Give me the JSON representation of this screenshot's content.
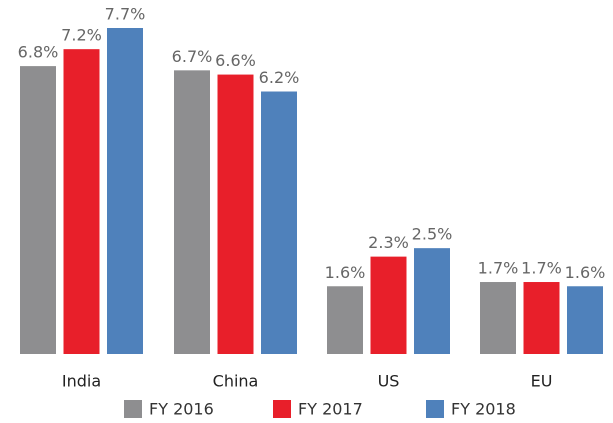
{
  "chart_data": {
    "type": "bar",
    "categories": [
      "India",
      "China",
      "US",
      "EU"
    ],
    "series": [
      {
        "name": "FY 2016",
        "color": "#8e8e90",
        "values": [
          6.8,
          6.7,
          1.6,
          1.7
        ],
        "value_labels": [
          "6.8%",
          "6.7%",
          "1.6%",
          "1.7%"
        ]
      },
      {
        "name": "FY 2017",
        "color": "#e81f2a",
        "values": [
          7.2,
          6.6,
          2.3,
          1.7
        ],
        "value_labels": [
          "7.2%",
          "6.6%",
          "2.3%",
          "1.7%"
        ]
      },
      {
        "name": "FY 2018",
        "color": "#4f81bb",
        "values": [
          7.7,
          6.2,
          2.5,
          1.6
        ],
        "value_labels": [
          "7.7%",
          "6.2%",
          "2.5%",
          "1.6%"
        ]
      }
    ]
  }
}
